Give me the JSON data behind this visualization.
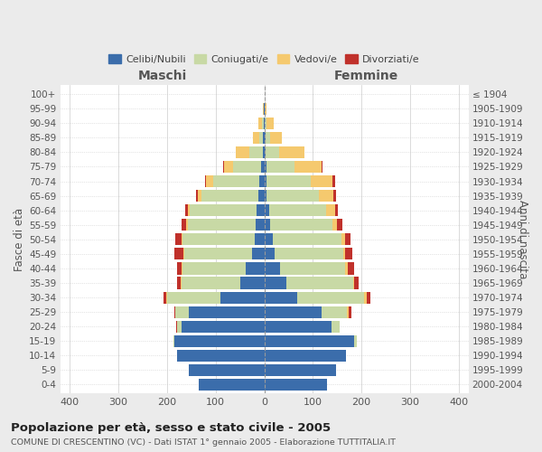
{
  "age_groups": [
    "0-4",
    "5-9",
    "10-14",
    "15-19",
    "20-24",
    "25-29",
    "30-34",
    "35-39",
    "40-44",
    "45-49",
    "50-54",
    "55-59",
    "60-64",
    "65-69",
    "70-74",
    "75-79",
    "80-84",
    "85-89",
    "90-94",
    "95-99",
    "100+"
  ],
  "birth_years": [
    "2000-2004",
    "1995-1999",
    "1990-1994",
    "1985-1989",
    "1980-1984",
    "1975-1979",
    "1970-1974",
    "1965-1969",
    "1960-1964",
    "1955-1959",
    "1950-1954",
    "1945-1949",
    "1940-1944",
    "1935-1939",
    "1930-1934",
    "1925-1929",
    "1920-1924",
    "1915-1919",
    "1910-1914",
    "1905-1909",
    "≤ 1904"
  ],
  "maschi_celibi": [
    135,
    155,
    180,
    185,
    170,
    155,
    90,
    50,
    38,
    25,
    20,
    18,
    15,
    12,
    10,
    6,
    3,
    2,
    1,
    1,
    0
  ],
  "maschi_coniugati": [
    0,
    0,
    0,
    2,
    10,
    28,
    110,
    120,
    130,
    140,
    148,
    140,
    138,
    118,
    95,
    58,
    28,
    8,
    4,
    0,
    0
  ],
  "maschi_vedovi": [
    0,
    0,
    0,
    0,
    0,
    0,
    2,
    2,
    2,
    2,
    3,
    3,
    4,
    6,
    15,
    18,
    28,
    14,
    8,
    2,
    0
  ],
  "maschi_divorziati": [
    0,
    0,
    0,
    0,
    2,
    2,
    5,
    8,
    10,
    18,
    12,
    10,
    6,
    4,
    2,
    2,
    0,
    0,
    0,
    0,
    0
  ],
  "femmine_celibi": [
    130,
    148,
    168,
    185,
    138,
    118,
    68,
    45,
    32,
    22,
    18,
    12,
    10,
    5,
    5,
    4,
    2,
    2,
    0,
    0,
    0
  ],
  "femmine_coniugati": [
    0,
    0,
    0,
    5,
    18,
    52,
    138,
    138,
    135,
    140,
    140,
    128,
    118,
    108,
    90,
    58,
    28,
    10,
    4,
    0,
    0
  ],
  "femmine_vedovi": [
    0,
    0,
    0,
    0,
    0,
    4,
    5,
    2,
    5,
    5,
    8,
    10,
    18,
    30,
    45,
    55,
    52,
    25,
    16,
    4,
    0
  ],
  "femmine_divorziati": [
    0,
    0,
    0,
    0,
    0,
    5,
    8,
    10,
    12,
    15,
    12,
    10,
    5,
    5,
    5,
    2,
    0,
    0,
    0,
    0,
    0
  ],
  "color_celibi": "#3b6dab",
  "color_coniugati": "#c8d9a5",
  "color_vedovi": "#f5c96e",
  "color_divorziati": "#c0312b",
  "xlim": 420,
  "title": "Popolazione per età, sesso e stato civile - 2005",
  "subtitle": "COMUNE DI CRESCENTINO (VC) - Dati ISTAT 1° gennaio 2005 - Elaborazione TUTTITALIA.IT",
  "ylabel_left": "Fasce di età",
  "ylabel_right": "Anni di nascita",
  "xlabel_left": "Maschi",
  "xlabel_right": "Femmine",
  "bg_color": "#ebebeb",
  "plot_bg": "#ffffff"
}
